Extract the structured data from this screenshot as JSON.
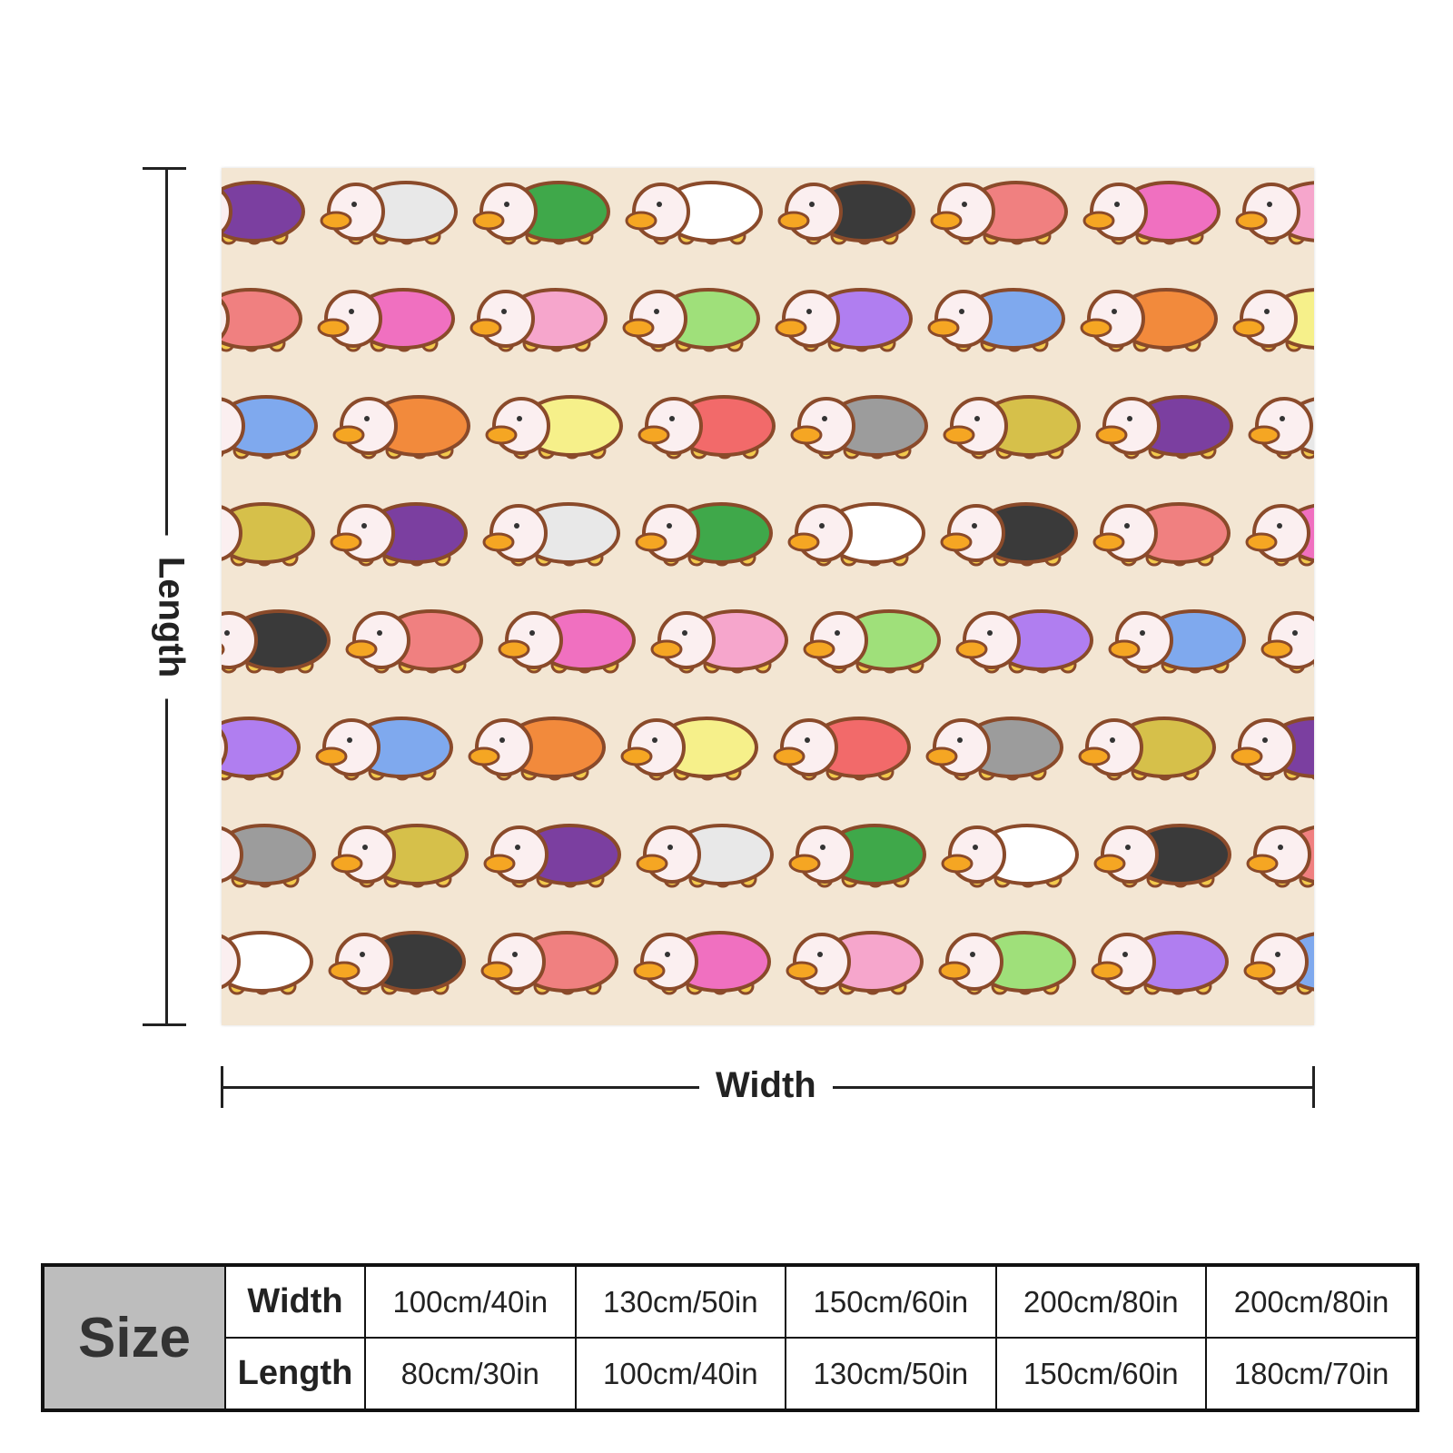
{
  "dimensions": {
    "length_label": "Length",
    "width_label": "Width"
  },
  "pattern": {
    "background": "#f3e6d3",
    "outline": "#8a4a2a",
    "body_colors": [
      "#7b3fa0",
      "#f26a6a",
      "#7fa9ee",
      "#f6a6cc",
      "#3a3a3a",
      "#e8e8e8",
      "#9c9c9c",
      "#f28a3c",
      "#9fe07a",
      "#f08080",
      "#3fa84a",
      "#d6c04a",
      "#f6f08a",
      "#b07ef0",
      "#f070c0",
      "#ffffff"
    ]
  },
  "size_table": {
    "size_label": "Size",
    "width_label": "Width",
    "length_label": "Length",
    "widths": [
      "100cm/40in",
      "130cm/50in",
      "150cm/60in",
      "200cm/80in",
      "200cm/80in"
    ],
    "lengths": [
      "80cm/30in",
      "100cm/40in",
      "130cm/50in",
      "150cm/60in",
      "180cm/70in"
    ]
  }
}
